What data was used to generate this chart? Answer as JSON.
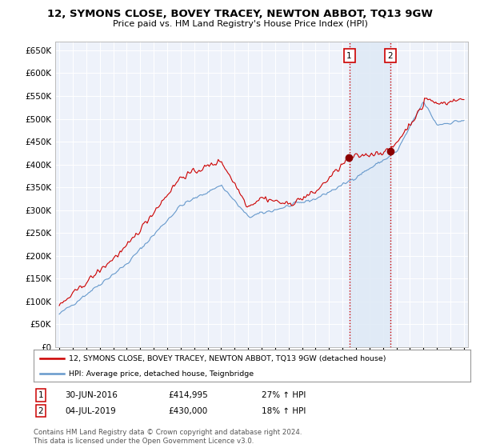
{
  "title": "12, SYMONS CLOSE, BOVEY TRACEY, NEWTON ABBOT, TQ13 9GW",
  "subtitle": "Price paid vs. HM Land Registry's House Price Index (HPI)",
  "legend_line1": "12, SYMONS CLOSE, BOVEY TRACEY, NEWTON ABBOT, TQ13 9GW (detached house)",
  "legend_line2": "HPI: Average price, detached house, Teignbridge",
  "footer": "Contains HM Land Registry data © Crown copyright and database right 2024.\nThis data is licensed under the Open Government Licence v3.0.",
  "sale1_label": "1",
  "sale1_date": "30-JUN-2016",
  "sale1_price": "£414,995",
  "sale1_hpi": "27% ↑ HPI",
  "sale2_label": "2",
  "sale2_date": "04-JUL-2019",
  "sale2_price": "£430,000",
  "sale2_hpi": "18% ↑ HPI",
  "ylim": [
    0,
    670000
  ],
  "yticks": [
    0,
    50000,
    100000,
    150000,
    200000,
    250000,
    300000,
    350000,
    400000,
    450000,
    500000,
    550000,
    600000,
    650000
  ],
  "sale_color": "#cc0000",
  "hpi_color": "#6699cc",
  "vline_color": "#cc0000",
  "shade_color": "#dde8f5",
  "background_color": "#ffffff",
  "plot_bg_color": "#eef2fa",
  "grid_color": "#ffffff",
  "sale1_x": 2016.5,
  "sale2_x": 2019.54,
  "xmin": 1994.7,
  "xmax": 2025.3
}
